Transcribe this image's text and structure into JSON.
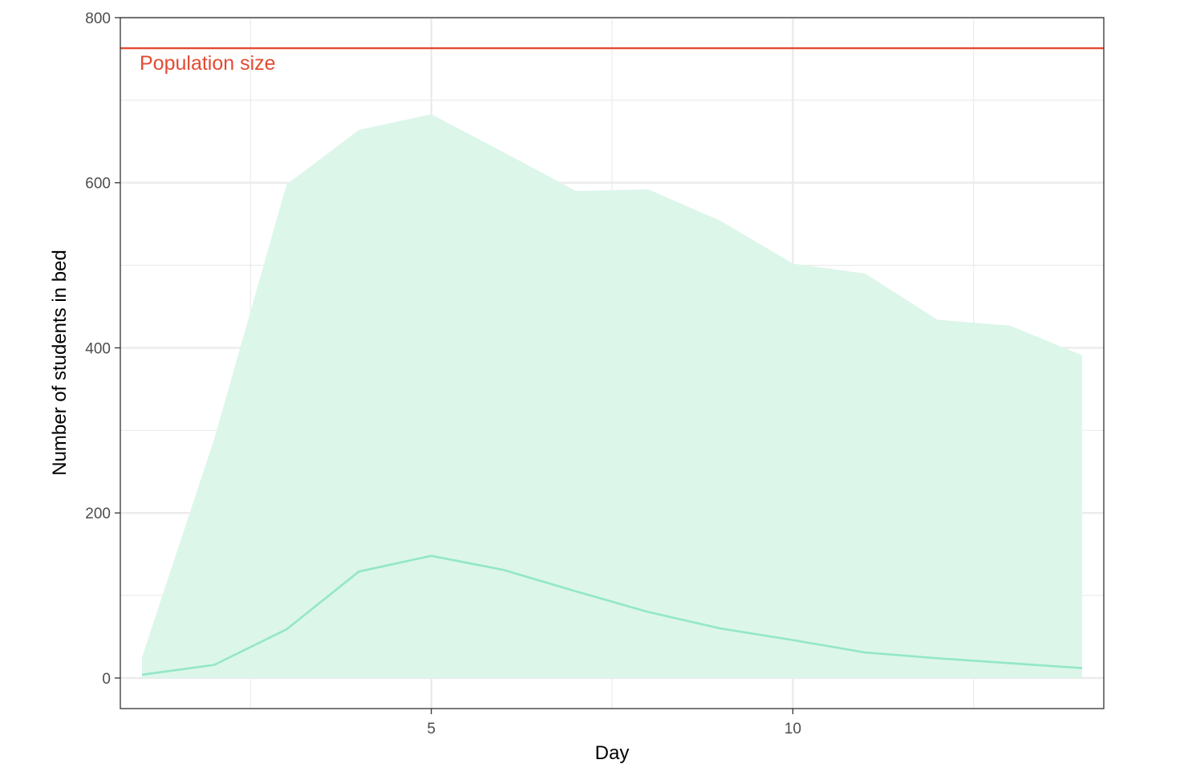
{
  "chart_data": {
    "type": "area",
    "title": "",
    "xlabel": "Day",
    "ylabel": "Number of students in bed",
    "xlim": [
      0.7,
      14.3
    ],
    "ylim": [
      -37,
      800
    ],
    "x_ticks": [
      5,
      10
    ],
    "x_minor_ticks": [
      2.5,
      7.5,
      12.5
    ],
    "y_ticks": [
      0,
      200,
      400,
      600,
      800
    ],
    "y_minor_ticks": [
      100,
      300,
      500,
      700
    ],
    "grid": true,
    "x": [
      1,
      2,
      3,
      4,
      5,
      6,
      7,
      8,
      9,
      10,
      11,
      12,
      13,
      14
    ],
    "series": [
      {
        "kind": "ribbon",
        "lower": [
          0,
          0,
          0,
          0,
          0,
          0,
          0,
          0,
          0,
          0,
          0,
          0,
          0,
          0
        ],
        "upper": [
          25,
          290,
          598,
          664,
          683,
          637,
          590,
          592,
          554,
          502,
          490,
          434,
          427,
          391
        ],
        "color": "#dcf6ea"
      },
      {
        "kind": "line",
        "values": [
          4,
          16,
          59,
          129,
          148,
          131,
          105,
          80,
          60,
          46,
          31,
          24,
          18,
          12
        ],
        "color": "#93e7c8"
      }
    ],
    "reference_line": {
      "y": 763,
      "label": "Population size",
      "color": "#e34a33"
    }
  }
}
